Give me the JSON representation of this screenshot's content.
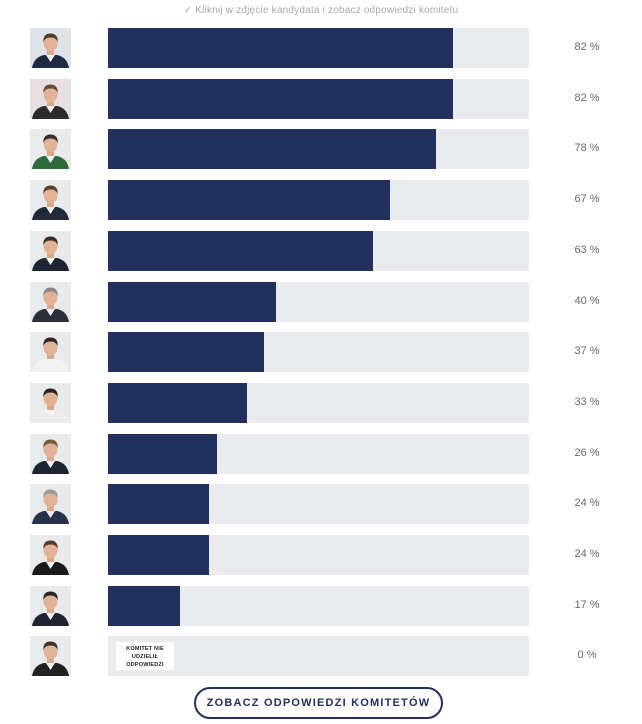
{
  "hint_text": "✓ Kliknij w zdjęcie kandydata i zobacz odpowiedzi komitetu",
  "button_label": "ZOBACZ ODPOWIEDZI KOMITETÓW",
  "colors": {
    "fill": "#22305e",
    "track": "#e9ebee",
    "button_border": "#22305e"
  },
  "rows": [
    {
      "percent": 82,
      "label": "82 %",
      "avatar_bg": "#dfe3e8",
      "suit": "#1c2a44",
      "hair": "#4a3b2e",
      "portrait": "candidate-photo"
    },
    {
      "percent": 82,
      "label": "82 %",
      "avatar_bg": "#e6e0e2",
      "suit": "#2b2b2b",
      "hair": "#6b4a35",
      "portrait": "candidate-photo"
    },
    {
      "percent": 78,
      "label": "78 %",
      "avatar_bg": "#e8eaec",
      "suit": "#2f6b3a",
      "hair": "#3a2f2a",
      "portrait": "candidate-photo"
    },
    {
      "percent": 67,
      "label": "67 %",
      "avatar_bg": "#e8eaec",
      "suit": "#1f2a3a",
      "hair": "#5a4532",
      "portrait": "candidate-photo"
    },
    {
      "percent": 63,
      "label": "63 %",
      "avatar_bg": "#e8eaec",
      "suit": "#1e2433",
      "hair": "#3a2e26",
      "portrait": "candidate-photo"
    },
    {
      "percent": 40,
      "label": "40 %",
      "avatar_bg": "#e8eaec",
      "suit": "#2a2f3a",
      "hair": "#8a8a8a",
      "portrait": "candidate-photo"
    },
    {
      "percent": 37,
      "label": "37 %",
      "avatar_bg": "#e8eaec",
      "suit": "#f2f2f2",
      "hair": "#2d2824",
      "portrait": "candidate-photo"
    },
    {
      "percent": 33,
      "label": "33 %",
      "avatar_bg": "#e8eaec",
      "suit": "#ededed",
      "hair": "#2a2420",
      "portrait": "candidate-photo"
    },
    {
      "percent": 26,
      "label": "26 %",
      "avatar_bg": "#e8eaec",
      "suit": "#1e2433",
      "hair": "#7a5a38",
      "portrait": "candidate-photo"
    },
    {
      "percent": 24,
      "label": "24 %",
      "avatar_bg": "#e8eaec",
      "suit": "#26324a",
      "hair": "#9a9a9a",
      "portrait": "candidate-photo"
    },
    {
      "percent": 24,
      "label": "24 %",
      "avatar_bg": "#e8eaec",
      "suit": "#1a1a1a",
      "hair": "#5a3a2a",
      "portrait": "candidate-photo"
    },
    {
      "percent": 17,
      "label": "17 %",
      "avatar_bg": "#e8eaec",
      "suit": "#1f2430",
      "hair": "#2a2420",
      "portrait": "candidate-photo"
    },
    {
      "percent": 0,
      "label": "0 %",
      "avatar_bg": "#e8eaec",
      "suit": "#222222",
      "hair": "#3a342e",
      "portrait": "candidate-photo",
      "no_answer": [
        "KOMITET NIE",
        "UDZIELIŁ",
        "ODPOWIEDZI"
      ]
    }
  ]
}
